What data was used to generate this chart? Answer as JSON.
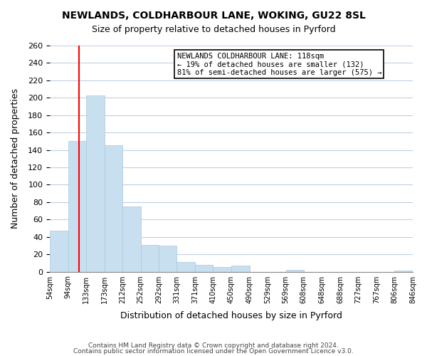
{
  "title": "NEWLANDS, COLDHARBOUR LANE, WOKING, GU22 8SL",
  "subtitle": "Size of property relative to detached houses in Pyrford",
  "xlabel": "Distribution of detached houses by size in Pyrford",
  "ylabel": "Number of detached properties",
  "bar_color": "#c8dff0",
  "bar_edge_color": "#c8dff0",
  "reference_line_x": 118,
  "reference_line_color": "red",
  "bin_edges": [
    54,
    94,
    133,
    173,
    212,
    252,
    292,
    331,
    371,
    410,
    450,
    490,
    529,
    569,
    608,
    648,
    688,
    727,
    767,
    806,
    846
  ],
  "bin_labels": [
    "54sqm",
    "94sqm",
    "133sqm",
    "173sqm",
    "212sqm",
    "252sqm",
    "292sqm",
    "331sqm",
    "371sqm",
    "410sqm",
    "450sqm",
    "490sqm",
    "529sqm",
    "569sqm",
    "608sqm",
    "648sqm",
    "688sqm",
    "727sqm",
    "767sqm",
    "806sqm",
    "846sqm"
  ],
  "bar_heights": [
    47,
    150,
    203,
    145,
    75,
    31,
    30,
    11,
    8,
    5,
    7,
    0,
    0,
    2,
    0,
    0,
    0,
    0,
    0,
    1
  ],
  "ylim": [
    0,
    260
  ],
  "yticks": [
    0,
    20,
    40,
    60,
    80,
    100,
    120,
    140,
    160,
    180,
    200,
    220,
    240,
    260
  ],
  "annotation_box_text": "NEWLANDS COLDHARBOUR LANE: 118sqm\n← 19% of detached houses are smaller (132)\n81% of semi-detached houses are larger (575) →",
  "footer1": "Contains HM Land Registry data © Crown copyright and database right 2024.",
  "footer2": "Contains public sector information licensed under the Open Government Licence v3.0.",
  "background_color": "#ffffff",
  "grid_color": "#c0d0e0"
}
